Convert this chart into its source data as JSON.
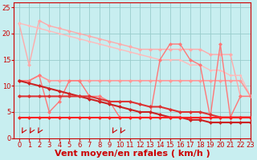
{
  "xlabel": "Vent moyen/en rafales ( km/h )",
  "bg_color": "#c8eef0",
  "grid_color": "#99cccc",
  "xlim": [
    -0.5,
    23
  ],
  "ylim": [
    0,
    26
  ],
  "yticks": [
    0,
    5,
    10,
    15,
    20,
    25
  ],
  "xticks": [
    0,
    1,
    2,
    3,
    4,
    5,
    6,
    7,
    8,
    9,
    10,
    11,
    12,
    13,
    14,
    15,
    16,
    17,
    18,
    19,
    20,
    21,
    22,
    23
  ],
  "series": [
    {
      "x": [
        0,
        1,
        2,
        3,
        4,
        5,
        6,
        7,
        8,
        9,
        10,
        11,
        12,
        13,
        14,
        15,
        16,
        17,
        18,
        19,
        20,
        21,
        22,
        23
      ],
      "y": [
        22,
        14,
        22.5,
        21.5,
        21,
        20.5,
        20,
        19.5,
        19,
        18.5,
        18,
        17.5,
        17,
        17,
        17,
        17,
        17,
        17,
        17,
        16,
        16,
        16,
        8,
        8
      ],
      "color": "#ffaaaa",
      "lw": 1.0,
      "marker": "D",
      "ms": 2.5,
      "zorder": 2
    },
    {
      "x": [
        0,
        1,
        2,
        3,
        4,
        5,
        6,
        7,
        8,
        9,
        10,
        11,
        12,
        13,
        14,
        15,
        16,
        17,
        18,
        19,
        20,
        21,
        22,
        23
      ],
      "y": [
        22,
        21.5,
        21,
        20.5,
        20,
        19.5,
        19,
        18.5,
        18,
        17.5,
        17,
        16.5,
        16,
        15.5,
        15,
        15,
        15,
        14,
        14,
        13,
        13,
        12,
        12,
        8
      ],
      "color": "#ffbbbb",
      "lw": 1.0,
      "marker": "D",
      "ms": 2,
      "zorder": 2
    },
    {
      "x": [
        0,
        1,
        2,
        3,
        4,
        5,
        6,
        7,
        8,
        9,
        10,
        11,
        12,
        13,
        14,
        15,
        16,
        17,
        18,
        19,
        20,
        21,
        22,
        23
      ],
      "y": [
        11,
        11,
        12,
        11,
        11,
        11,
        11,
        11,
        11,
        11,
        11,
        11,
        11,
        11,
        11,
        11,
        11,
        11,
        11,
        11,
        11,
        11,
        11,
        8
      ],
      "color": "#ff9999",
      "lw": 1.2,
      "marker": "D",
      "ms": 2.5,
      "zorder": 3
    },
    {
      "x": [
        0,
        1,
        2,
        3,
        4,
        5,
        6,
        7,
        8,
        9,
        10,
        11,
        12,
        13,
        14,
        15,
        16,
        17,
        18,
        19,
        20,
        21,
        22,
        23
      ],
      "y": [
        11,
        10.5,
        10,
        9.5,
        9,
        8.5,
        8,
        7.5,
        7,
        6.5,
        6,
        5.5,
        5,
        5,
        4.5,
        4,
        4,
        3.5,
        3.5,
        3,
        3,
        3,
        3,
        3
      ],
      "color": "#cc2222",
      "lw": 1.5,
      "marker": "D",
      "ms": 2.5,
      "zorder": 4
    },
    {
      "x": [
        0,
        1,
        2,
        3,
        4,
        5,
        6,
        7,
        8,
        9,
        10,
        11,
        12,
        13,
        14,
        15,
        16,
        17,
        18,
        19,
        20,
        21,
        22,
        23
      ],
      "y": [
        8,
        8,
        8,
        8,
        8,
        8,
        8,
        8,
        7.5,
        7,
        7,
        7,
        6.5,
        6,
        6,
        5.5,
        5,
        5,
        5,
        4.5,
        4,
        4,
        4,
        4
      ],
      "color": "#dd3333",
      "lw": 1.5,
      "marker": "D",
      "ms": 2.5,
      "zorder": 4
    },
    {
      "x": [
        0,
        1,
        2,
        3,
        4,
        5,
        6,
        7,
        8,
        9,
        10,
        11,
        12,
        13,
        14,
        15,
        16,
        17,
        18,
        19,
        20,
        21,
        22,
        23
      ],
      "y": [
        4,
        4,
        4,
        4,
        4,
        4,
        4,
        4,
        4,
        4,
        4,
        4,
        4,
        4,
        4,
        4,
        4,
        4,
        4,
        4,
        4,
        4,
        4,
        4
      ],
      "color": "#ff2222",
      "lw": 1.5,
      "marker": "D",
      "ms": 2.5,
      "zorder": 5
    },
    {
      "x": [
        0,
        1,
        2,
        3,
        4,
        5,
        6,
        7,
        8,
        9,
        10,
        11,
        12,
        13,
        14,
        15,
        16,
        17,
        18,
        19,
        20,
        21,
        22,
        23
      ],
      "y": [
        11,
        11,
        12,
        5,
        7,
        11,
        11,
        8,
        8,
        7,
        4,
        4,
        4,
        4,
        15,
        18,
        18,
        15,
        14,
        4,
        18,
        4,
        8,
        8
      ],
      "color": "#ff7777",
      "lw": 1.0,
      "marker": "D",
      "ms": 2.5,
      "zorder": 3
    }
  ],
  "arrows_x": [
    0.3,
    1.1,
    1.9,
    9.3,
    10.1
  ],
  "xlabel_color": "#cc0000",
  "xlabel_fontsize": 8,
  "tick_color": "#cc0000",
  "tick_fontsize": 6,
  "axis_color": "#cc0000"
}
